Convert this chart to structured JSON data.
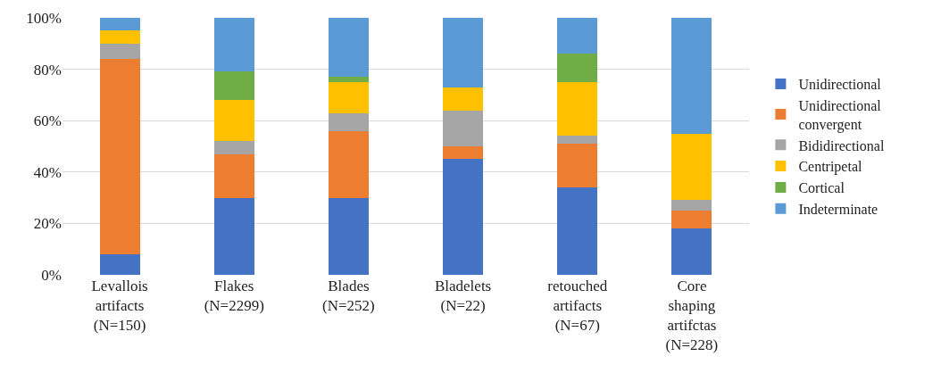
{
  "chart_data": {
    "type": "bar",
    "stacked": true,
    "categories": [
      "Levallois\nartifacts\n(N=150)",
      "Flakes\n(N=2299)",
      "Blades\n(N=252)",
      "Bladelets\n(N=22)",
      "retouched\nartifacts\n(N=67)",
      "Core\nshaping\nartifctas\n(N=228)"
    ],
    "series": [
      {
        "name": "Unidirectional",
        "color": "#4472c4",
        "values": [
          8,
          30,
          30,
          45,
          34,
          18
        ]
      },
      {
        "name": "Unidirectional\nconvergent",
        "color": "#ed7d31",
        "values": [
          76,
          17,
          26,
          5,
          17,
          7
        ]
      },
      {
        "name": "Bididirectional",
        "color": "#a5a5a5",
        "values": [
          6,
          5,
          7,
          14,
          3,
          4
        ]
      },
      {
        "name": "Centripetal",
        "color": "#ffc000",
        "values": [
          5,
          16,
          12,
          9,
          21,
          26
        ]
      },
      {
        "name": "Cortical",
        "color": "#70ad47",
        "values": [
          0,
          11,
          2,
          0,
          11,
          0
        ]
      },
      {
        "name": "Indeterminate",
        "color": "#5b9bd5",
        "values": [
          5,
          21,
          23,
          27,
          14,
          45
        ]
      }
    ],
    "ylim": [
      0,
      100
    ],
    "yticks": [
      {
        "value": 0,
        "label": "0%"
      },
      {
        "value": 20,
        "label": "20%"
      },
      {
        "value": 40,
        "label": "40%"
      },
      {
        "value": 60,
        "label": "60%"
      },
      {
        "value": 80,
        "label": "80%"
      },
      {
        "value": 100,
        "label": "100%"
      }
    ],
    "grid": "y",
    "legend": "right"
  }
}
